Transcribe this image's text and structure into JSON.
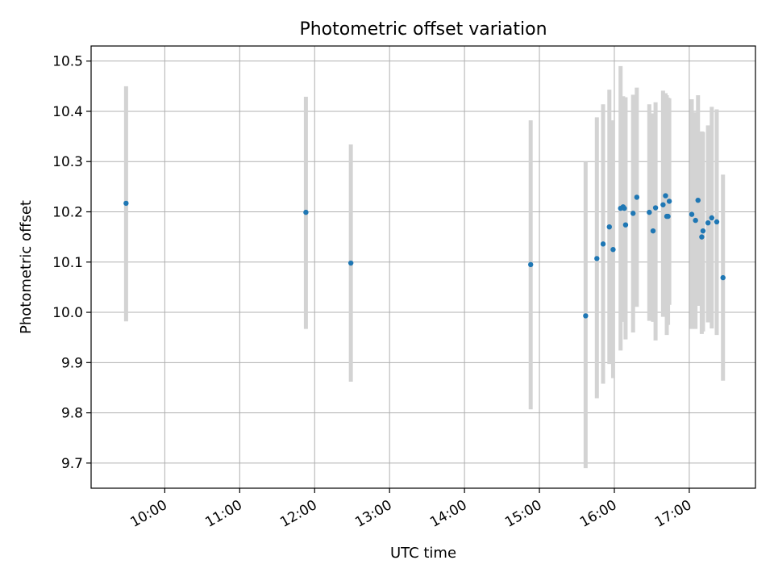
{
  "chart_data": {
    "type": "scatter",
    "title": "Photometric offset variation",
    "xlabel": "UTC time",
    "ylabel": "Photometric offset",
    "x_tick_labels": [
      "10:00",
      "11:00",
      "12:00",
      "13:00",
      "14:00",
      "15:00",
      "16:00",
      "17:00"
    ],
    "x_tick_values": [
      10,
      11,
      12,
      13,
      14,
      15,
      16,
      17
    ],
    "y_ticks": [
      9.7,
      9.8,
      9.9,
      10.0,
      10.1,
      10.2,
      10.3,
      10.4,
      10.5
    ],
    "xlim": [
      "09:01",
      "17:53"
    ],
    "ylim": [
      9.65,
      10.53
    ],
    "grid": true,
    "colors": {
      "point": "#1f77b4",
      "errorbar": "#d3d3d3",
      "grid": "#b0b0b0"
    },
    "points": [
      {
        "time": "09:29",
        "y": 10.217,
        "err_low": 9.982,
        "err_high": 10.45
      },
      {
        "time": "11:53",
        "y": 10.199,
        "err_low": 9.967,
        "err_high": 10.429
      },
      {
        "time": "12:29",
        "y": 10.098,
        "err_low": 9.862,
        "err_high": 10.334
      },
      {
        "time": "14:53",
        "y": 10.095,
        "err_low": 9.807,
        "err_high": 10.382
      },
      {
        "time": "15:37",
        "y": 9.993,
        "err_low": 9.69,
        "err_high": 10.3
      },
      {
        "time": "15:46",
        "y": 10.107,
        "err_low": 9.829,
        "err_high": 10.388
      },
      {
        "time": "15:51",
        "y": 10.136,
        "err_low": 9.858,
        "err_high": 10.414
      },
      {
        "time": "15:56",
        "y": 10.17,
        "err_low": 9.897,
        "err_high": 10.443
      },
      {
        "time": "15:59",
        "y": 10.125,
        "err_low": 9.869,
        "err_high": 10.382
      },
      {
        "time": "16:05",
        "y": 10.207,
        "err_low": 9.924,
        "err_high": 10.49
      },
      {
        "time": "16:07",
        "y": 10.21,
        "err_low": 9.991,
        "err_high": 10.43
      },
      {
        "time": "16:08",
        "y": 10.207,
        "err_low": 9.981,
        "err_high": 10.427
      },
      {
        "time": "16:09",
        "y": 10.174,
        "err_low": 9.946,
        "err_high": 10.428
      },
      {
        "time": "16:15",
        "y": 10.197,
        "err_low": 9.96,
        "err_high": 10.433
      },
      {
        "time": "16:18",
        "y": 10.229,
        "err_low": 10.011,
        "err_high": 10.447
      },
      {
        "time": "16:28",
        "y": 10.199,
        "err_low": 9.983,
        "err_high": 10.414
      },
      {
        "time": "16:31",
        "y": 10.162,
        "err_low": 9.981,
        "err_high": 10.396
      },
      {
        "time": "16:33",
        "y": 10.208,
        "err_low": 9.944,
        "err_high": 10.418
      },
      {
        "time": "16:39",
        "y": 10.214,
        "err_low": 9.991,
        "err_high": 10.441
      },
      {
        "time": "16:41",
        "y": 10.232,
        "err_low": 10.017,
        "err_high": 10.436
      },
      {
        "time": "16:42",
        "y": 10.191,
        "err_low": 9.955,
        "err_high": 10.432
      },
      {
        "time": "16:43",
        "y": 10.191,
        "err_low": 9.975,
        "err_high": 10.427
      },
      {
        "time": "16:44",
        "y": 10.221,
        "err_low": 10.015,
        "err_high": 10.426
      },
      {
        "time": "17:02",
        "y": 10.195,
        "err_low": 9.967,
        "err_high": 10.424
      },
      {
        "time": "17:05",
        "y": 10.183,
        "err_low": 9.967,
        "err_high": 10.398
      },
      {
        "time": "17:07",
        "y": 10.223,
        "err_low": 10.013,
        "err_high": 10.432
      },
      {
        "time": "17:10",
        "y": 10.15,
        "err_low": 9.957,
        "err_high": 10.36
      },
      {
        "time": "17:11",
        "y": 10.162,
        "err_low": 9.962,
        "err_high": 10.359
      },
      {
        "time": "17:15",
        "y": 10.178,
        "err_low": 9.98,
        "err_high": 10.372
      },
      {
        "time": "17:18",
        "y": 10.188,
        "err_low": 9.968,
        "err_high": 10.409
      },
      {
        "time": "17:22",
        "y": 10.18,
        "err_low": 9.955,
        "err_high": 10.404
      },
      {
        "time": "17:27",
        "y": 10.069,
        "err_low": 9.864,
        "err_high": 10.274
      }
    ]
  }
}
